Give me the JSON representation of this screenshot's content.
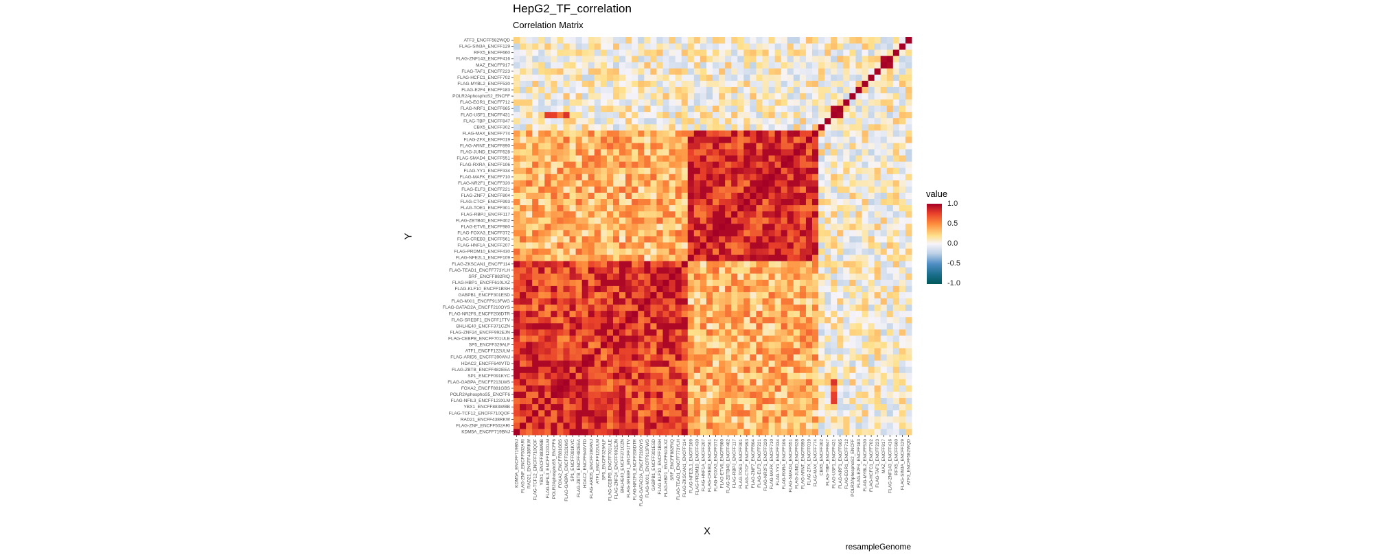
{
  "chart_data": {
    "type": "heatmap",
    "title": "HepG2_TF_correlation",
    "subtitle": "Correlation Matrix",
    "xlabel": "X",
    "ylabel": "Y",
    "caption": "resampleGenome",
    "legend": {
      "title": "value",
      "ticks": [
        "1.0",
        "0.5",
        "0.0",
        "-0.5",
        "-1.0"
      ],
      "range": [
        -1,
        1
      ],
      "position": "right"
    },
    "n_variables": 64,
    "row_labels": [
      "KDM5A_ENCFF719BNJ",
      "FLAG-ZNF_ENCFF502ARI",
      "RAD21_ENCFF438RKW",
      "FLAG-TCF12_ENCFF710QOF",
      "YBX1_ENCFF883WBB",
      "FLAG-NFIL3_ENCFF123XLM",
      "POLR2AphosphoS5_ENCFF6",
      "FOXA2_ENCFF881GBS",
      "FLAG-GABPA_ENCFF213LWS",
      "SP1_ENCFF091KYC",
      "FLAG-ZBTB_ENCFF482EEA",
      "HDAC2_ENCFF640VTD",
      "FLAG-ARID5_ENCFF390ANJ",
      "ATF1_ENCFF122ULM",
      "SP5_ENCFF329ALF",
      "FLAG-CEBPB_ENCFF701ULE",
      "FLAG-ZNF24_ENCFF992EJN",
      "BHLHE40_ENCFF371CZN",
      "FLAG-SREBF1_ENCFF1TTV",
      "FLAG-NR2F6_ENCFF208DTR",
      "FLAG-GATAD2A_ENCFF210OYS",
      "FLAG-MXI1_ENCFF913FWG",
      "GABPB1_ENCFF301ESD",
      "FLAG-KLF10_ENCFF1BSH",
      "FLAG-HBP1_ENCFF610LXZ",
      "SRF_ENCFF882RIQ",
      "FLAG-TEAD1_ENCFF773YLH",
      "FLAG-ZKSCAN1_ENCFF114",
      "FLAG-NFE2L1_ENCFF109",
      "FLAG-PRDM10_ENCFF430",
      "FLAG-HNF1A_ENCFF207",
      "FLAG-CREB3_ENCFF561",
      "FLAG-FOXA3_ENCFF372",
      "FLAG-ETV6_ENCFF980",
      "FLAG-ZBTB40_ENCFF402",
      "FLAG-RBPJ_ENCFF117",
      "FLAG-TOE1_ENCFF301",
      "FLAG-CTCF_ENCFF993",
      "FLAG-ZNF7_ENCFF804",
      "FLAG-ELF3_ENCFF221",
      "FLAG-NR2F1_ENCFF320",
      "FLAG-MAFK_ENCFF710",
      "FLAG-YY1_ENCFF334",
      "FLAG-RXRA_ENCFF106",
      "FLAG-SMAD4_ENCFF551",
      "FLAG-JUND_ENCFF628",
      "FLAG-ARNT_ENCFF890",
      "FLAG-ZFX_ENCFF019",
      "FLAG-MAX_ENCFF774",
      "CBX5_ENCFF302",
      "FLAG-TBP_ENCFF847",
      "FLAG-USF1_ENCFF431",
      "FLAG-NRF1_ENCFF665",
      "FLAG-EGR1_ENCFF712",
      "POLR2AphosphoS2_ENCFF",
      "FLAG-E2F4_ENCFF183",
      "FLAG-MYBL2_ENCFF530",
      "FLAG-HCFC1_ENCFF702",
      "FLAG-TAF1_ENCFF223",
      "MAZ_ENCFF917",
      "FLAG-ZNF143_ENCFF416",
      "RFX5_ENCFF660",
      "FLAG-SIN3A_ENCFF129",
      "ATF3_ENCFF582WQD"
    ],
    "col_labels": [
      "KDM5A_ENCFF719BNJ",
      "FLAG-ZNF_ENCFF502ARI",
      "RAD21_ENCFF438RKW",
      "FLAG-TCF12_ENCFF710QOF",
      "YBX1_ENCFF883WBB",
      "FLAG-NFIL3_ENCFF123XLM",
      "POLR2AphosphoS5_ENCFF6",
      "FOXA2_ENCFF881GBS",
      "FLAG-GABPA_ENCFF213LWS",
      "SP1_ENCFF091KYC",
      "FLAG-ZBTB_ENCFF482EEA",
      "HDAC2_ENCFF640VTD",
      "FLAG-ARID5_ENCFF390ANJ",
      "ATF1_ENCFF122ULM",
      "SP5_ENCFF329ALF",
      "FLAG-CEBPB_ENCFF701ULE",
      "FLAG-ZNF24_ENCFF992EJN",
      "BHLHE40_ENCFF371CZN",
      "FLAG-SREBF1_ENCFF1TTV",
      "FLAG-NR2F6_ENCFF208DTR",
      "FLAG-GATAD2A_ENCFF210OYS",
      "FLAG-MXI1_ENCFF913FWG",
      "GABPB1_ENCFF301ESD",
      "FLAG-KLF10_ENCFF1BSH",
      "FLAG-HBP1_ENCFF610LXZ",
      "SRF_ENCFF882RIQ",
      "FLAG-TEAD1_ENCFF773YLH",
      "FLAG-ZKSCAN1_ENCFF114",
      "FLAG-NFE2L1_ENCFF109",
      "FLAG-PRDM10_ENCFF430",
      "FLAG-HNF1A_ENCFF207",
      "FLAG-CREB3_ENCFF561",
      "FLAG-FOXA3_ENCFF372",
      "FLAG-ETV6_ENCFF980",
      "FLAG-ZBTB40_ENCFF402",
      "FLAG-RBPJ_ENCFF117",
      "FLAG-TOE1_ENCFF301",
      "FLAG-CTCF_ENCFF993",
      "FLAG-ZNF7_ENCFF804",
      "FLAG-ELF3_ENCFF221",
      "FLAG-NR2F1_ENCFF320",
      "FLAG-MAFK_ENCFF710",
      "FLAG-YY1_ENCFF334",
      "FLAG-RXRA_ENCFF106",
      "FLAG-SMAD4_ENCFF551",
      "FLAG-JUND_ENCFF628",
      "FLAG-ARNT_ENCFF890",
      "FLAG-ZFX_ENCFF019",
      "FLAG-MAX_ENCFF774",
      "CBX5_ENCFF302",
      "FLAG-TBP_ENCFF847",
      "FLAG-USF1_ENCFF431",
      "FLAG-NRF1_ENCFF665",
      "FLAG-EGR1_ENCFF712",
      "POLR2AphosphoS2_ENCFF",
      "FLAG-E2F4_ENCFF183",
      "FLAG-MYBL2_ENCFF530",
      "FLAG-HCFC1_ENCFF702",
      "FLAG-TAF1_ENCFF223",
      "MAZ_ENCFF917",
      "FLAG-ZNF143_ENCFF416",
      "RFX5_ENCFF660",
      "FLAG-SIN3A_ENCFF129",
      "ATF3_ENCFF582WQD"
    ],
    "block_structure": [
      {
        "rows": [
          0,
          13
        ],
        "cols": [
          0,
          13
        ],
        "value": 0.85
      },
      {
        "rows": [
          0,
          13
        ],
        "cols": [
          14,
          27
        ],
        "value": 0.75
      },
      {
        "rows": [
          14,
          27
        ],
        "cols": [
          0,
          13
        ],
        "value": 0.75
      },
      {
        "rows": [
          14,
          27
        ],
        "cols": [
          14,
          27
        ],
        "value": 0.8
      },
      {
        "rows": [
          0,
          27
        ],
        "cols": [
          28,
          48
        ],
        "value": 0.35
      },
      {
        "rows": [
          28,
          48
        ],
        "cols": [
          0,
          27
        ],
        "value": 0.35
      },
      {
        "rows": [
          28,
          48
        ],
        "cols": [
          28,
          48
        ],
        "value": 0.82
      },
      {
        "rows": [
          49,
          63
        ],
        "cols": [
          0,
          63
        ],
        "value": 0.05
      },
      {
        "rows": [
          0,
          48
        ],
        "cols": [
          49,
          63
        ],
        "value": 0.05
      },
      {
        "rows": [
          51,
          52
        ],
        "cols": [
          51,
          52
        ],
        "value": 1.0
      },
      {
        "rows": [
          59,
          60
        ],
        "cols": [
          59,
          60
        ],
        "value": 0.9
      },
      {
        "rows": [
          5,
          8
        ],
        "cols": [
          51,
          51
        ],
        "value": 0.7
      }
    ],
    "diagonal": 1.0
  }
}
